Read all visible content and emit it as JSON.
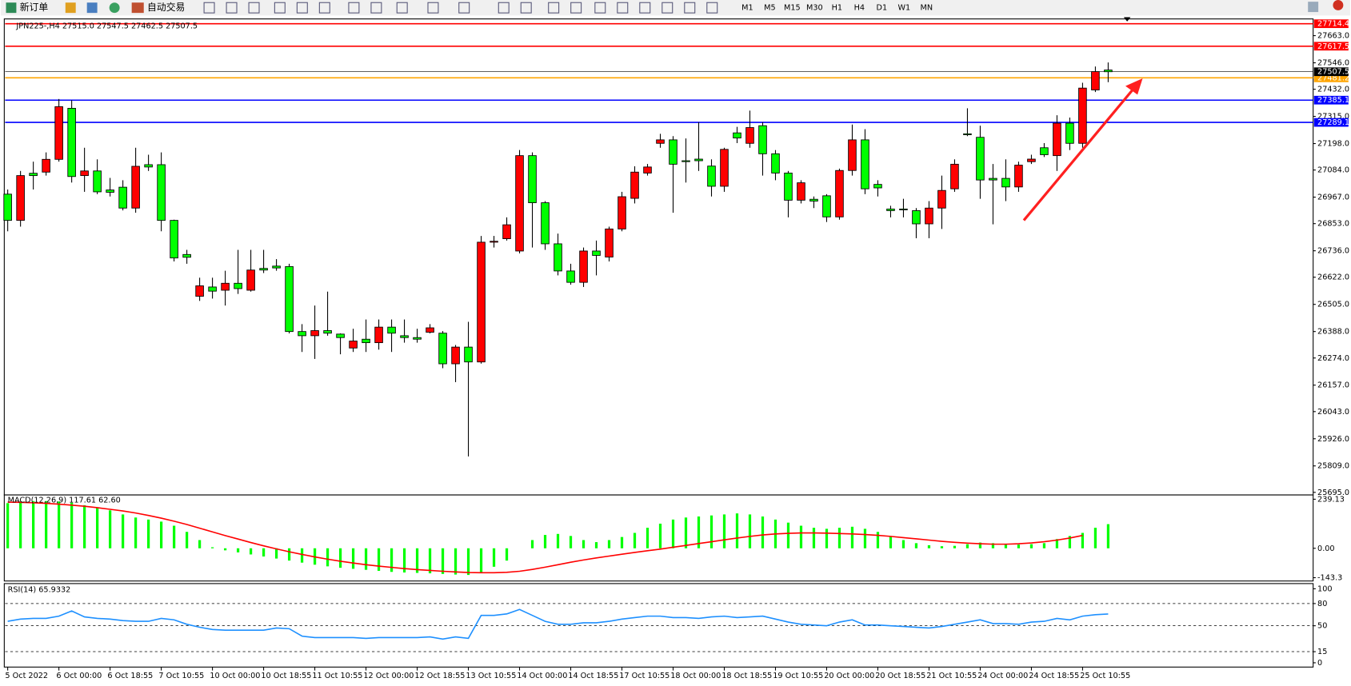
{
  "toolbar": {
    "new_order": "新订单",
    "auto_trading": "自动交易",
    "timeframes": [
      "M1",
      "M5",
      "M15",
      "M30",
      "H1",
      "H4",
      "D1",
      "W1",
      "MN"
    ]
  },
  "chart_data": [
    {
      "type": "candlestick",
      "title": "JPN225-,H4  27515.0 27547.5 27462.5 27507.5",
      "categories": [
        "5 Oct 2022",
        null,
        null,
        null,
        "6 Oct 00:00",
        null,
        null,
        null,
        "6 Oct 18:55",
        null,
        null,
        null,
        "7 Oct 10:55",
        null,
        null,
        null,
        "10 Oct 00:00",
        null,
        null,
        null,
        "10 Oct 18:55",
        null,
        null,
        null,
        "11 Oct 10:55",
        null,
        null,
        null,
        "12 Oct 00:00",
        null,
        null,
        null,
        "12 Oct 18:55",
        null,
        null,
        null,
        "13 Oct 10:55",
        null,
        null,
        null,
        "14 Oct 00:00",
        null,
        null,
        null,
        "14 Oct 18:55",
        null,
        null,
        null,
        "17 Oct 10:55",
        null,
        null,
        null,
        "18 Oct 00:00",
        null,
        null,
        null,
        "18 Oct 18:55",
        null,
        null,
        null,
        "19 Oct 10:55",
        null,
        null,
        null,
        "20 Oct 00:00",
        null,
        null,
        null,
        "20 Oct 18:55",
        null,
        null,
        null,
        "21 Oct 10:55",
        null,
        null,
        null,
        "24 Oct 00:00",
        null,
        null,
        null,
        "24 Oct 18:55",
        null,
        null,
        null,
        "25 Oct 10:55",
        null,
        null
      ],
      "open": [
        26980,
        26867,
        27070,
        27075,
        27130,
        27350,
        27060,
        27080,
        26998,
        27010,
        26920,
        27107,
        27107,
        26867,
        26720,
        26540,
        26580,
        26566,
        26596,
        26566,
        26660,
        26670,
        26668,
        26388,
        26370,
        26392,
        26377,
        26317,
        26355,
        26340,
        26407,
        26370,
        26362,
        26385,
        26381,
        26249,
        26321,
        26257,
        26773,
        26788,
        26735,
        27146,
        26943,
        26766,
        26649,
        26600,
        26735,
        26709,
        26830,
        26962,
        27071,
        27199,
        27214,
        27124,
        27131,
        27101,
        27014,
        27244,
        27199,
        27275,
        27154,
        27071,
        26954,
        26958,
        26973,
        26882,
        27082,
        27214,
        27022,
        26916,
        26916,
        26909,
        26852,
        26920,
        27003,
        27240,
        27225,
        27048,
        27048,
        27011,
        27120,
        27180,
        27146,
        27286,
        27199,
        27429,
        27515
      ],
      "high": [
        27000,
        27080,
        27120,
        27160,
        27390,
        27385,
        27180,
        27130,
        27050,
        27040,
        27180,
        27150,
        27160,
        26870,
        26740,
        26620,
        26620,
        26650,
        26740,
        26740,
        26740,
        26700,
        26680,
        26420,
        26500,
        26560,
        26380,
        26400,
        26440,
        26440,
        26440,
        26440,
        26400,
        26420,
        26390,
        26330,
        26430,
        26800,
        26800,
        26880,
        27170,
        27160,
        26950,
        26810,
        26680,
        26750,
        26780,
        26840,
        26990,
        27100,
        27110,
        27240,
        27230,
        27220,
        27290,
        27130,
        27180,
        27270,
        27340,
        27290,
        27170,
        27080,
        27040,
        26970,
        26980,
        27090,
        27280,
        27260,
        27040,
        26930,
        26960,
        26920,
        26950,
        27060,
        27130,
        27350,
        27275,
        27110,
        27130,
        27120,
        27150,
        27200,
        27320,
        27310,
        27460,
        27530,
        27547.5
      ],
      "low": [
        26820,
        26840,
        27000,
        27060,
        27120,
        27030,
        26990,
        26980,
        26970,
        26910,
        26900,
        27080,
        26820,
        26690,
        26680,
        26520,
        26530,
        26500,
        26550,
        26560,
        26640,
        26650,
        26380,
        26300,
        26270,
        26370,
        26290,
        26300,
        26300,
        26310,
        26300,
        26340,
        26340,
        26380,
        26230,
        26170,
        25850,
        26250,
        26750,
        26780,
        26725,
        26750,
        26740,
        26630,
        26590,
        26580,
        26630,
        26690,
        26820,
        26940,
        27060,
        27180,
        26900,
        27030,
        27080,
        26970,
        26990,
        27200,
        27180,
        27060,
        27040,
        26880,
        26940,
        26920,
        26860,
        26870,
        27060,
        26980,
        26970,
        26880,
        26880,
        26790,
        26790,
        26830,
        26990,
        27230,
        26960,
        26850,
        26950,
        26990,
        27110,
        27140,
        27080,
        27170,
        27180,
        27420,
        27462.5
      ],
      "close": [
        26867,
        27060,
        27060,
        27130,
        27357,
        27056,
        27080,
        26990,
        26988,
        26920,
        27100,
        27097,
        26867,
        26705,
        26708,
        26585,
        26562,
        26596,
        26573,
        26653,
        26653,
        26662,
        26388,
        26370,
        26392,
        26381,
        26362,
        26347,
        26340,
        26407,
        26381,
        26362,
        26355,
        26404,
        26249,
        26321,
        26257,
        26773,
        26777,
        26848,
        27146,
        26943,
        26766,
        26649,
        26600,
        26735,
        26716,
        26830,
        26969,
        27075,
        27097,
        27214,
        27109,
        27120,
        27124,
        27014,
        27173,
        27222,
        27267,
        27154,
        27071,
        26954,
        27029,
        26950,
        26882,
        27082,
        27214,
        27003,
        27007,
        26909,
        26913,
        26852,
        26920,
        26996,
        27109,
        27236,
        27041,
        27041,
        27011,
        27105,
        27131,
        27150,
        27286,
        27199,
        27437,
        27508,
        27507.5
      ],
      "up_color": "#ff0000",
      "down_color": "#00ff00",
      "ylim": [
        25684,
        27735
      ],
      "yticks": [
        {
          "value": 27663,
          "label": "27663.0"
        },
        {
          "value": 27546,
          "label": "27546.0"
        },
        {
          "value": 27432,
          "label": "27432.0"
        },
        {
          "value": 27315,
          "label": "27315.0"
        },
        {
          "value": 27198,
          "label": "27198.0"
        },
        {
          "value": 27084,
          "label": "27084.0"
        },
        {
          "value": 26967,
          "label": "26967.0"
        },
        {
          "value": 26853,
          "label": "26853.0"
        },
        {
          "value": 26736,
          "label": "26736.0"
        },
        {
          "value": 26622,
          "label": "26622.0"
        },
        {
          "value": 26505,
          "label": "26505.0"
        },
        {
          "value": 26388,
          "label": "26388.0"
        },
        {
          "value": 26274,
          "label": "26274.0"
        },
        {
          "value": 26157,
          "label": "26157.0"
        },
        {
          "value": 26043,
          "label": "26043.0"
        },
        {
          "value": 25926,
          "label": "25926.0"
        },
        {
          "value": 25809,
          "label": "25809.0"
        },
        {
          "value": 25695,
          "label": "25695.0"
        }
      ],
      "hlines": [
        {
          "value": 27714.4,
          "color": "#ff0000"
        },
        {
          "value": 27617.5,
          "color": "#ff0000"
        },
        {
          "value": 27481.2,
          "color": "#ffa500"
        },
        {
          "value": 27385.1,
          "color": "#0000ff"
        },
        {
          "value": 27289.1,
          "color": "#0000ff"
        }
      ],
      "current_price": 27507.5
    },
    {
      "type": "macd",
      "title": "MACD(12,26,9) 117.61 62.60",
      "histogram": [
        220,
        228,
        230,
        230,
        228,
        222,
        210,
        200,
        185,
        165,
        150,
        140,
        130,
        110,
        80,
        40,
        5,
        -10,
        -20,
        -30,
        -40,
        -50,
        -60,
        -70,
        -80,
        -88,
        -95,
        -100,
        -105,
        -110,
        -115,
        -118,
        -120,
        -122,
        -125,
        -128,
        -130,
        -120,
        -90,
        -60,
        0,
        40,
        65,
        70,
        60,
        40,
        30,
        40,
        55,
        75,
        100,
        120,
        140,
        150,
        155,
        160,
        165,
        170,
        165,
        155,
        140,
        125,
        110,
        100,
        95,
        100,
        105,
        95,
        80,
        60,
        40,
        25,
        15,
        10,
        12,
        20,
        28,
        25,
        20,
        18,
        20,
        25,
        45,
        60,
        75,
        100,
        117.61
      ],
      "signal": [
        225,
        224,
        222,
        219,
        215,
        210,
        205,
        198,
        190,
        182,
        172,
        160,
        147,
        132,
        116,
        98,
        80,
        62,
        45,
        28,
        12,
        -3,
        -17,
        -30,
        -42,
        -53,
        -63,
        -72,
        -80,
        -87,
        -93,
        -99,
        -104,
        -108,
        -112,
        -115,
        -118,
        -119,
        -119,
        -117,
        -112,
        -103,
        -92,
        -80,
        -68,
        -57,
        -47,
        -38,
        -29,
        -20,
        -12,
        -4,
        5,
        14,
        23,
        32,
        41,
        50,
        58,
        65,
        70,
        73,
        75,
        75,
        74,
        72,
        70,
        67,
        63,
        58,
        52,
        46,
        40,
        34,
        29,
        25,
        22,
        20,
        20,
        22,
        26,
        32,
        40,
        50,
        62.6
      ],
      "histogram_color": "#00ff00",
      "signal_color": "#ff0000",
      "ylim": [
        -159.4,
        260.1
      ],
      "yticks": [
        {
          "value": 239.13,
          "label": "239.13"
        },
        {
          "value": 0,
          "label": "0.00"
        },
        -143.3
      ]
    },
    {
      "type": "rsi",
      "title": "RSI(14) 65.9332",
      "values": [
        56,
        59,
        60,
        60,
        63,
        70,
        62,
        60,
        59,
        57,
        56,
        56,
        60,
        58,
        52,
        48,
        45,
        44,
        44,
        44,
        44,
        47,
        46,
        36,
        34,
        34,
        34,
        34,
        33,
        34,
        34,
        34,
        34,
        35,
        32,
        35,
        33,
        64,
        64,
        66,
        72,
        64,
        56,
        52,
        52,
        54,
        54,
        56,
        59,
        61,
        63,
        63,
        61,
        61,
        60,
        62,
        63,
        61,
        62,
        63,
        59,
        55,
        52,
        51,
        50,
        55,
        58,
        51,
        51,
        50,
        49,
        48,
        47,
        49,
        52,
        55,
        58,
        53,
        53,
        52,
        55,
        56,
        60,
        58,
        63,
        65,
        65.9332
      ],
      "color": "#1e90ff",
      "ylim": [
        -5.8,
        107
      ],
      "yticks": [
        100,
        80,
        50,
        15,
        0
      ],
      "levels": [
        80,
        50,
        15
      ]
    }
  ]
}
